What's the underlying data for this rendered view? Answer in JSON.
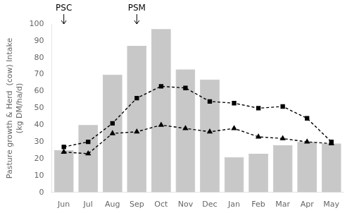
{
  "chart_data": {
    "type": "bar",
    "categories": [
      "Jun",
      "Jul",
      "Aug",
      "Sep",
      "Oct",
      "Nov",
      "Dec",
      "Jan",
      "Feb",
      "Mar",
      "Apr",
      "May"
    ],
    "series": [
      {
        "type": "bar",
        "color": "#c8c8c8",
        "values": [
          25,
          40,
          70,
          87,
          97,
          73,
          67,
          21,
          23,
          28,
          30,
          29
        ]
      },
      {
        "type": "line",
        "color": "#000000",
        "marker": "square",
        "line_style": "dashed",
        "values": [
          27,
          30,
          41,
          56,
          63,
          62,
          54,
          53,
          50,
          51,
          44,
          30
        ]
      },
      {
        "type": "line",
        "color": "#000000",
        "marker": "triangle",
        "line_style": "dashed",
        "values": [
          24,
          23,
          35,
          36,
          40,
          38,
          36,
          38,
          33,
          32,
          30,
          29
        ]
      }
    ],
    "ylabel": "Pasture growth & Herd  (cow) Intake\n(kg DM/ha/d)",
    "ylim": [
      0,
      100
    ],
    "yticks": [
      0,
      10,
      20,
      30,
      40,
      50,
      60,
      70,
      80,
      90,
      100
    ],
    "grid": false,
    "annotations": [
      {
        "text": "PSC",
        "x": "Jun"
      },
      {
        "text": "PSM",
        "x": "Sep"
      }
    ]
  }
}
